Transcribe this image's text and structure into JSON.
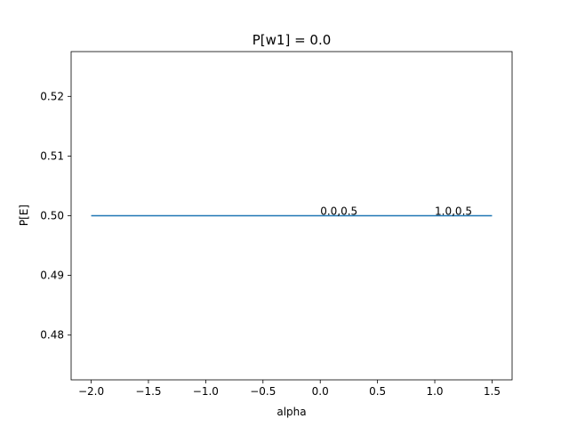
{
  "chart_data": {
    "type": "line",
    "title": "P[w1] = 0.0",
    "xlabel": "alpha",
    "ylabel": "P[E]",
    "xlim": [
      -2.175,
      1.675
    ],
    "ylim": [
      0.4725,
      0.5275
    ],
    "xticks": [
      -2.0,
      -1.5,
      -1.0,
      -0.5,
      0.0,
      0.5,
      1.0,
      1.5
    ],
    "xtick_labels": [
      "−2.0",
      "−1.5",
      "−1.0",
      "−0.5",
      "0.0",
      "0.5",
      "1.0",
      "1.5"
    ],
    "yticks": [
      0.48,
      0.49,
      0.5,
      0.51,
      0.52
    ],
    "ytick_labels": [
      "0.48",
      "0.49",
      "0.50",
      "0.51",
      "0.52"
    ],
    "grid": false,
    "series": [
      {
        "color": "#1f77b4",
        "x": [
          -2.0,
          1.5
        ],
        "y": [
          0.5,
          0.5
        ]
      }
    ],
    "annotations": [
      {
        "text": "0.0,0.5",
        "x": 0.0,
        "y": 0.5
      },
      {
        "text": "1.0,0.5",
        "x": 1.0,
        "y": 0.5
      }
    ]
  }
}
